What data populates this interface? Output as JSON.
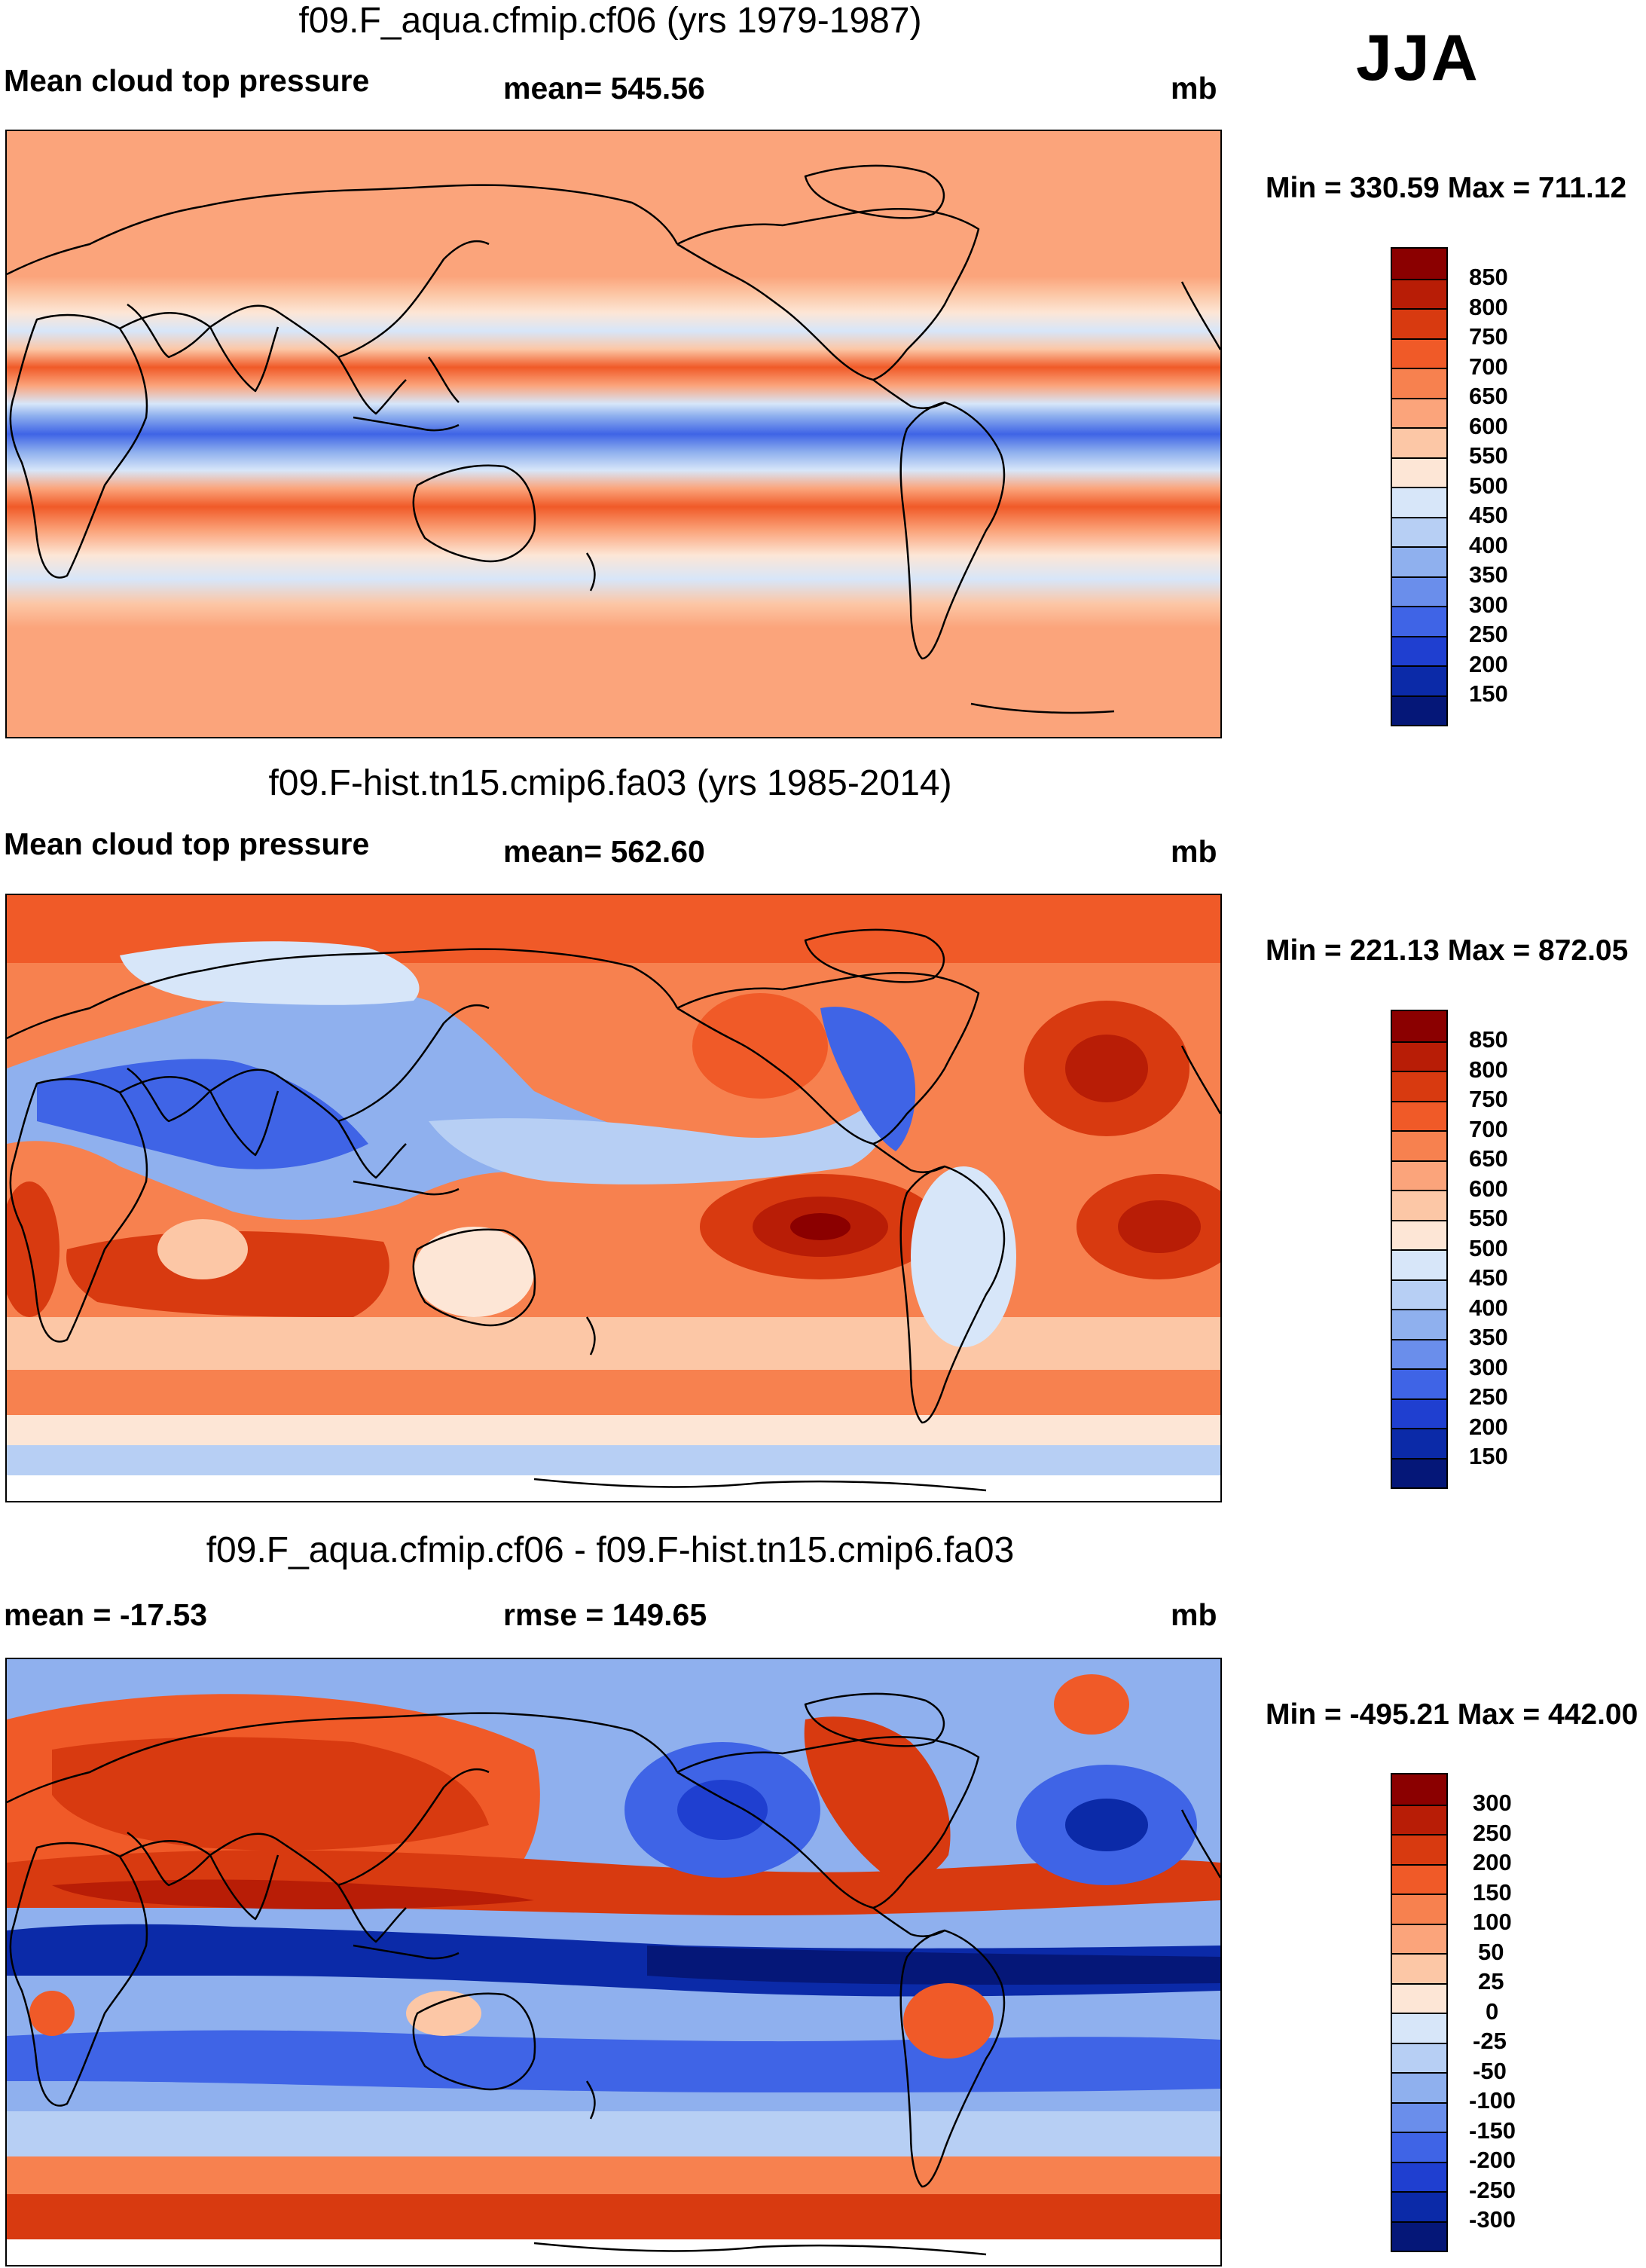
{
  "season": "JJA",
  "panels": [
    {
      "title": "f09.F_aqua.cfmip.cf06 (yrs 1979-1987)",
      "left_label": "Mean cloud top pressure",
      "center_label": "mean= 545.56",
      "units": "mb",
      "minmax": "Min = 330.59 Max = 711.12",
      "colorbar": {
        "labels": [
          "850",
          "800",
          "750",
          "700",
          "650",
          "600",
          "550",
          "500",
          "450",
          "400",
          "350",
          "300",
          "250",
          "200",
          "150"
        ],
        "colors": [
          "#8b0000",
          "#b81d06",
          "#d83a10",
          "#f05a28",
          "#f7814f",
          "#fba47b",
          "#fcc7a6",
          "#fde6d6",
          "#d7e6f9",
          "#b7cff4",
          "#8fb0ee",
          "#6a8eeb",
          "#3f64e6",
          "#1f3fd0",
          "#0b2aa8",
          "#051778"
        ]
      }
    },
    {
      "title": "f09.F-hist.tn15.cmip6.fa03 (yrs 1985-2014)",
      "left_label": "Mean cloud top pressure",
      "center_label": "mean= 562.60",
      "units": "mb",
      "minmax": "Min = 221.13 Max = 872.05",
      "colorbar": {
        "labels": [
          "850",
          "800",
          "750",
          "700",
          "650",
          "600",
          "550",
          "500",
          "450",
          "400",
          "350",
          "300",
          "250",
          "200",
          "150"
        ],
        "colors": [
          "#8b0000",
          "#b81d06",
          "#d83a10",
          "#f05a28",
          "#f7814f",
          "#fba47b",
          "#fcc7a6",
          "#fde6d6",
          "#d7e6f9",
          "#b7cff4",
          "#8fb0ee",
          "#6a8eeb",
          "#3f64e6",
          "#1f3fd0",
          "#0b2aa8",
          "#051778"
        ]
      }
    },
    {
      "title": "f09.F_aqua.cfmip.cf06 - f09.F-hist.tn15.cmip6.fa03",
      "left_label": "mean = -17.53",
      "center_label": "rmse = 149.65",
      "units": "mb",
      "minmax": "Min = -495.21 Max = 442.00",
      "colorbar": {
        "labels": [
          "300",
          "250",
          "200",
          "150",
          "100",
          "50",
          "25",
          "0",
          "-25",
          "-50",
          "-100",
          "-150",
          "-200",
          "-250",
          "-300"
        ],
        "colors": [
          "#8b0000",
          "#b81d06",
          "#d83a10",
          "#f05a28",
          "#f7814f",
          "#fba47b",
          "#fcc7a6",
          "#fde6d6",
          "#d7e6f9",
          "#b7cff4",
          "#8fb0ee",
          "#6a8eeb",
          "#3f64e6",
          "#1f3fd0",
          "#0b2aa8",
          "#051778"
        ]
      }
    }
  ]
}
